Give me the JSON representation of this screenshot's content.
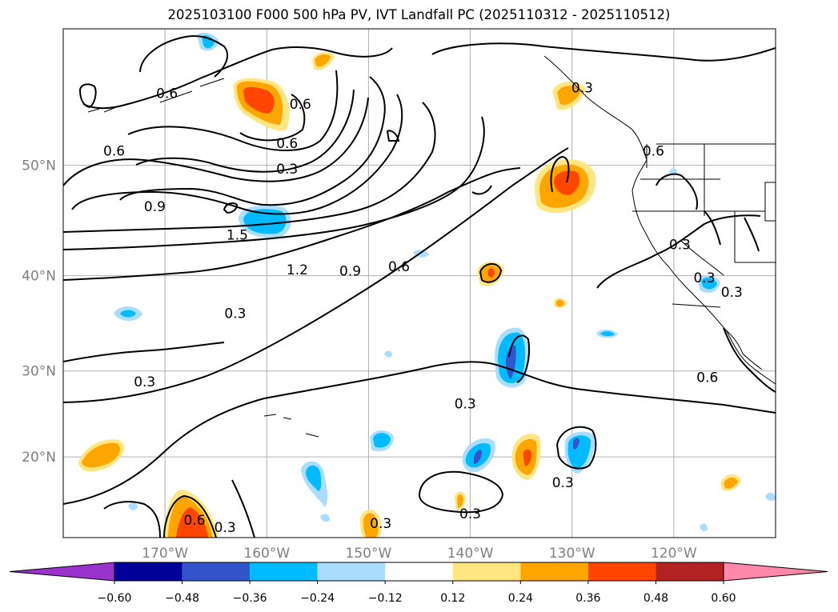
{
  "title": "2025103100 F000 500 hPa PV, IVT Landfall PC (2025110312 - 2025110512)",
  "chart_data": {
    "type": "contour-map",
    "title": "2025103100 F000 500 hPa PV, IVT Landfall PC (2025110312 - 2025110512)",
    "lon_range": [
      -180,
      -110
    ],
    "lat_range": [
      10,
      60
    ],
    "gridlines": true,
    "x_ticks": [
      {
        "value": -170,
        "label": "170°W"
      },
      {
        "value": -160,
        "label": "160°W"
      },
      {
        "value": -150,
        "label": "150°W"
      },
      {
        "value": -140,
        "label": "140°W"
      },
      {
        "value": -130,
        "label": "130°W"
      },
      {
        "value": -120,
        "label": "120°W"
      }
    ],
    "y_ticks": [
      {
        "value": 20,
        "label": "20°N"
      },
      {
        "value": 30,
        "label": "30°N"
      },
      {
        "value": 40,
        "label": "40°N"
      },
      {
        "value": 50,
        "label": "50°N"
      }
    ],
    "contour_labels": [
      {
        "text": "0.6",
        "lon": -169.8,
        "lat": 55.6
      },
      {
        "text": "0.6",
        "lon": -175.0,
        "lat": 51.2
      },
      {
        "text": "0.6",
        "lon": -158.0,
        "lat": 51.8
      },
      {
        "text": "0.6",
        "lon": -156.7,
        "lat": 54.8
      },
      {
        "text": "0.3",
        "lon": -158.0,
        "lat": 49.7
      },
      {
        "text": "0.9",
        "lon": -171.0,
        "lat": 46.5
      },
      {
        "text": "1.5",
        "lon": -162.9,
        "lat": 43.9
      },
      {
        "text": "1.2",
        "lon": -157.0,
        "lat": 40.6
      },
      {
        "text": "0.9",
        "lon": -151.8,
        "lat": 40.5
      },
      {
        "text": "0.6",
        "lon": -147.0,
        "lat": 40.9
      },
      {
        "text": "0.3",
        "lon": -163.1,
        "lat": 36.2
      },
      {
        "text": "0.3",
        "lon": -172.0,
        "lat": 28.8
      },
      {
        "text": "0.3",
        "lon": -140.5,
        "lat": 26.3
      },
      {
        "text": "0.3",
        "lon": -129.0,
        "lat": 56.0
      },
      {
        "text": "0.6",
        "lon": -122.0,
        "lat": 51.2
      },
      {
        "text": "0.3",
        "lon": -119.4,
        "lat": 43.0
      },
      {
        "text": "0.3",
        "lon": -117.0,
        "lat": 39.8
      },
      {
        "text": "0.3",
        "lon": -114.3,
        "lat": 38.4
      },
      {
        "text": "0.6",
        "lon": -116.7,
        "lat": 29.3
      },
      {
        "text": "0.6",
        "lon": -167.1,
        "lat": 12.2
      },
      {
        "text": "0.3",
        "lon": -164.1,
        "lat": 11.3
      },
      {
        "text": "0.3",
        "lon": -148.8,
        "lat": 11.8
      },
      {
        "text": "0.3",
        "lon": -140.0,
        "lat": 13.0
      },
      {
        "text": "0.3",
        "lon": -130.9,
        "lat": 16.9
      }
    ],
    "colorbar": {
      "levels": [
        "−0.60",
        "−0.48",
        "−0.36",
        "−0.24",
        "−0.12",
        "0.12",
        "0.24",
        "0.36",
        "0.48",
        "0.60"
      ],
      "colors": [
        "#9933cc",
        "#000099",
        "#3355cc",
        "#00bbff",
        "#aaddff",
        "#ffffff",
        "#ffe680",
        "#ffa500",
        "#ff4500",
        "#b22222",
        "#ff88aa"
      ],
      "extend": "both"
    }
  }
}
